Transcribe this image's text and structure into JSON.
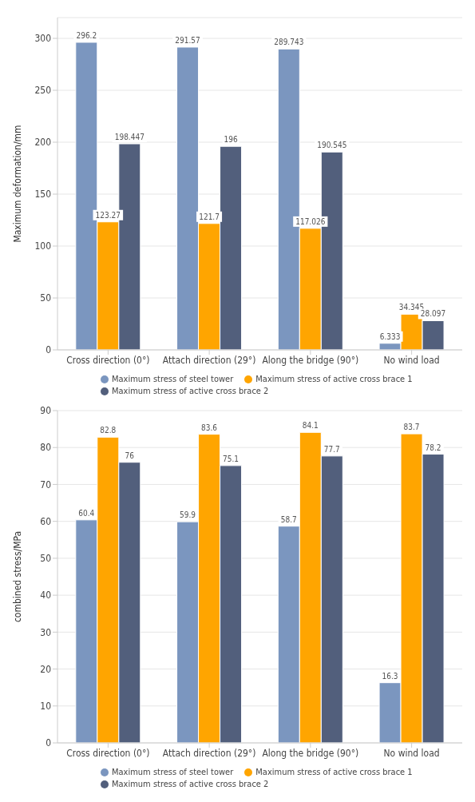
{
  "chart_data": [
    {
      "type": "bar",
      "ylabel": "Maximum deformation/mm",
      "categories": [
        "Cross direction (0°)",
        "Attach direction (29°)",
        "Along the bridge (90°)",
        "No wind load"
      ],
      "series": [
        {
          "name": "Maximum stress of steel tower",
          "color": "#7b96bf",
          "values": [
            296.2,
            291.57,
            289.743,
            6.333
          ]
        },
        {
          "name": "Maximum stress of active cross brace 1",
          "color": "#ffa500",
          "values": [
            123.27,
            121.7,
            117.026,
            34.345
          ]
        },
        {
          "name": "Maximum stress of active cross brace 2",
          "color": "#525f7c",
          "values": [
            198.447,
            196,
            190.545,
            28.097
          ]
        }
      ],
      "ylim": [
        0,
        320
      ],
      "yticks": [
        0,
        50,
        100,
        150,
        200,
        250,
        300
      ],
      "grid": "y",
      "legend": "bottom",
      "data_labels": true
    },
    {
      "type": "bar",
      "ylabel": "combined stress/MPa",
      "categories": [
        "Cross direction (0°)",
        "Attach direction (29°)",
        "Along the bridge (90°)",
        "No wind load"
      ],
      "series": [
        {
          "name": "Maximum stress of steel tower",
          "color": "#7b96bf",
          "values": [
            60.4,
            59.9,
            58.7,
            16.3
          ]
        },
        {
          "name": "Maximum stress of active cross brace 1",
          "color": "#ffa500",
          "values": [
            82.8,
            83.6,
            84.1,
            83.7
          ]
        },
        {
          "name": "Maximum stress of active cross brace 2",
          "color": "#525f7c",
          "values": [
            76,
            75.1,
            77.7,
            78.2
          ]
        }
      ],
      "ylim": [
        0,
        90
      ],
      "yticks": [
        0,
        10,
        20,
        30,
        40,
        50,
        60,
        70,
        80,
        90
      ],
      "grid": "y",
      "legend": "bottom",
      "data_labels": true
    }
  ]
}
